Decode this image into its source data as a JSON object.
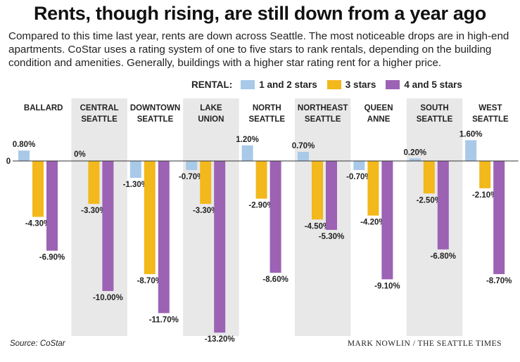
{
  "title": "Rents, though rising, are still down from a year ago",
  "subtitle": "Compared to this time last year, rents are down across Seattle. The most noticeable drops are in high-end apartments. CoStar uses a rating system of one to five stars to rank rentals, depending on the building condition and amenities. Generally, buildings with a higher star rating rent for a higher price.",
  "legend": {
    "label": "RENTAL:",
    "items": [
      {
        "name": "1 and 2 stars",
        "color": "#a9c9e8"
      },
      {
        "name": "3 stars",
        "color": "#f2b81c"
      },
      {
        "name": "4 and 5 stars",
        "color": "#9c62b4"
      }
    ]
  },
  "source": "Source: CoStar",
  "credit": "MARK NOWLIN / THE SEATTLE TIMES",
  "zero_label": "0",
  "chart_data": {
    "type": "bar",
    "categories": [
      [
        "BALLARD"
      ],
      [
        "CENTRAL",
        "SEATTLE"
      ],
      [
        "DOWNTOWN",
        "SEATTLE"
      ],
      [
        "LAKE",
        "UNION"
      ],
      [
        "NORTH",
        "SEATTLE"
      ],
      [
        "NORTHEAST",
        "SEATTLE"
      ],
      [
        "QUEEN",
        "ANNE"
      ],
      [
        "SOUTH",
        "SEATTLE"
      ],
      [
        "WEST",
        "SEATTLE"
      ]
    ],
    "series": [
      {
        "name": "1 and 2 stars",
        "color": "#a9c9e8",
        "values": [
          0.8,
          0,
          -1.3,
          -0.7,
          1.2,
          0.7,
          -0.7,
          0.2,
          1.6
        ],
        "labels": [
          "0.80%",
          "0%",
          "-1.30%",
          "-0.70%",
          "1.20%",
          "0.70%",
          "-0.70%",
          "0.20%",
          "1.60%"
        ]
      },
      {
        "name": "3 stars",
        "color": "#f2b81c",
        "values": [
          -4.3,
          -3.3,
          -8.7,
          -3.3,
          -2.9,
          -4.5,
          -4.2,
          -2.5,
          -2.1
        ],
        "labels": [
          "-4.30%",
          "-3.30%",
          "-8.70%",
          "-3.30%",
          "-2.90%",
          "-4.50%",
          "-4.20%",
          "-2.50%",
          "-2.10%"
        ]
      },
      {
        "name": "4 and 5 stars",
        "color": "#9c62b4",
        "values": [
          -6.9,
          -10.0,
          -11.7,
          -13.2,
          -8.6,
          -5.3,
          -9.1,
          -6.8,
          -8.7
        ],
        "labels": [
          "-6.90%",
          "-10.00%",
          "-11.70%",
          "-13.20%",
          "-8.60%",
          "-5.30%",
          "-9.10%",
          "-6.80%",
          "-8.70%"
        ]
      }
    ],
    "shaded_panels": [
      false,
      true,
      false,
      true,
      false,
      true,
      false,
      true,
      false
    ],
    "ylim": [
      -13.2,
      1.6
    ],
    "grid": false,
    "legend_position": "top-right",
    "colors": {
      "panel_shade": "#e8e8e8",
      "zero_line": "#333333"
    }
  }
}
